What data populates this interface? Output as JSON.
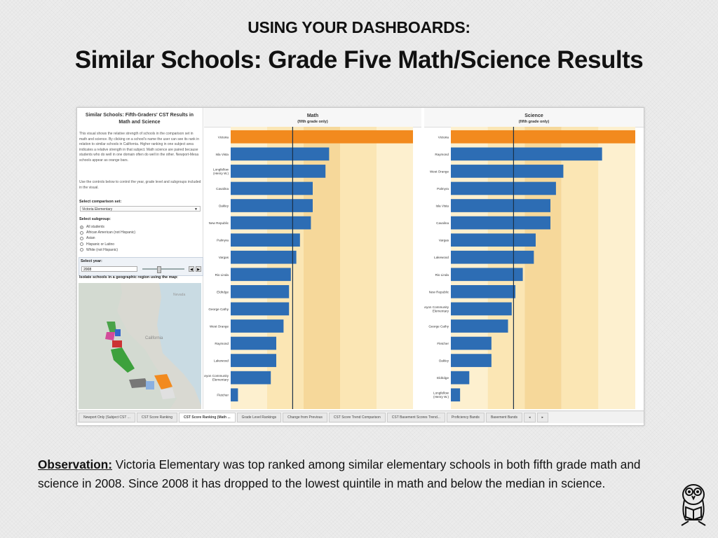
{
  "slide": {
    "subtitle": "USING YOUR DASHBOARDS:",
    "title": "Similar Schools: Grade Five Math/Science Results"
  },
  "dashboard": {
    "panel_title": "Similar Schools: Fifth-Graders' CST Results in Math and Science",
    "description": "This visual shows the relative strength of schools in the comparison set in math and science. By clicking on a school's name the user can see its rank in relation to similar schools in California. Higher ranking in one subject area indicates a relative strength in that subject. Math science are paired because students who do well in one domain often do well in the other. Newport-Mesa schools appear as orange bars.",
    "controls_note": "Use the controls below to control the year, grade level and subgroups included in the visual.",
    "comparison_label": "Select comparison set:",
    "comparison_value": "Victoria Elementary",
    "subgroup_label": "Select subgroup:",
    "subgroups": [
      "All students",
      "African American (not Hispanic)",
      "Asian",
      "Hispanic or Latino",
      "White (not Hispanic)"
    ],
    "year_label": "Select year:",
    "year_value": "2008",
    "map_label": "Isolate schools in a geographic region using the map:",
    "map_place": "California",
    "map_other": "Nevada",
    "tabs": [
      "Newport Only (Subject CST ...",
      "CST Score Ranking",
      "CST Score Ranking (Math ...",
      "Grade Level Rankings",
      "Change from Previous",
      "CST Score Trend Comparison",
      "CST Basement Scores Trend...",
      "Proficiency Bands",
      "Basement Bands"
    ],
    "active_tab": 2
  },
  "chart_data": [
    {
      "type": "bar",
      "orientation": "horizontal",
      "title": "Math",
      "subtitle": "(fifth grade only)",
      "categories": [
        "Victoria",
        "Isla Vista",
        "Longfellow (Henry W.)",
        "Cavalina",
        "Oakley",
        "New Republic",
        "Palmyra",
        "Vargas",
        "Rio Linda",
        "Eldridge",
        "George Cathy",
        "West Orange",
        "Raymond",
        "Lakewood",
        "Mint Canyon Community Elementary",
        "Fletcher"
      ],
      "values": [
        100,
        54,
        52,
        45,
        45,
        44,
        38,
        36,
        33,
        32,
        32,
        29,
        25,
        25,
        22,
        4
      ],
      "highlight": [
        "Victoria"
      ],
      "colors": {
        "bar": "#2d6db4",
        "highlight": "#f28a1e",
        "median": "#1b3148"
      }
    },
    {
      "type": "bar",
      "orientation": "horizontal",
      "title": "Science",
      "subtitle": "(fifth grade only)",
      "categories": [
        "Victoria",
        "Raymond",
        "West Orange",
        "Palmyra",
        "Isla Vista",
        "Cavalina",
        "Vargas",
        "Lakewood",
        "Rio Linda",
        "New Republic",
        "Mint Canyon Community Elementary",
        "George Cathy",
        "Fletcher",
        "Oakley",
        "Eldridge",
        "Longfellow (Henry W.)"
      ],
      "values": [
        100,
        82,
        61,
        57,
        54,
        54,
        46,
        45,
        39,
        35,
        33,
        31,
        22,
        22,
        10,
        5
      ],
      "highlight": [
        "Victoria"
      ],
      "colors": {
        "bar": "#2d6db4",
        "highlight": "#f28a1e",
        "median": "#1b3148"
      }
    }
  ],
  "observation": {
    "label": "Observation:",
    "text": " Victoria Elementary was top ranked among similar elementary schools in both fifth grade math and science in 2008. Since 2008 it has dropped to the lowest quintile in math and below the median in science."
  }
}
